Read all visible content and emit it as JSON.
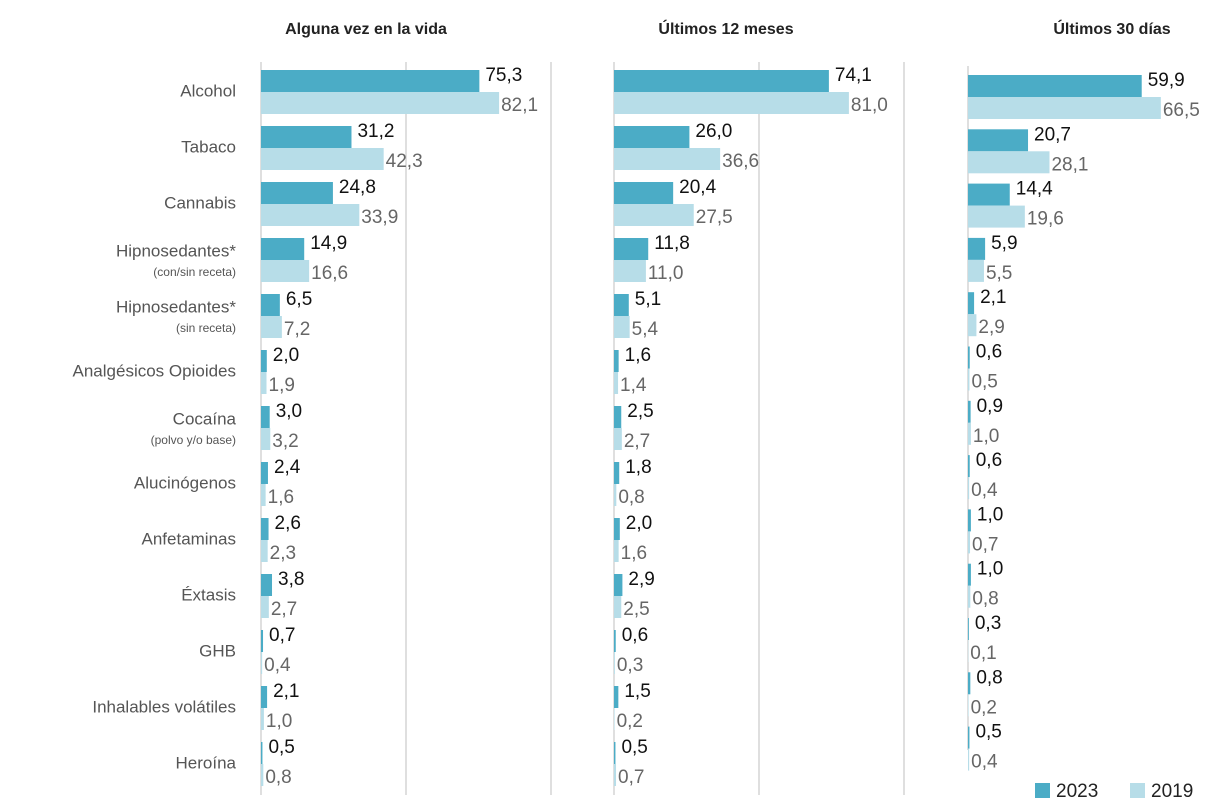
{
  "chart_data": [
    {
      "type": "bar",
      "orientation": "horizontal",
      "title": "Alguna vez en la vida",
      "categories": [
        "Alcohol",
        "Tabaco",
        "Cannabis",
        "Hipnosedantes*",
        "Hipnosedantes*",
        "Analgésicos Opioides",
        "Cocaína",
        "Alucinógenos",
        "Anfetaminas",
        "Éxtasis",
        "GHB",
        "Inhalables volátiles",
        "Heroína"
      ],
      "category_notes": [
        null,
        null,
        null,
        "(con/sin receta)",
        "(sin receta)",
        null,
        "(polvo y/o base)",
        null,
        null,
        null,
        null,
        null,
        null
      ],
      "series": [
        {
          "name": "2023",
          "color": "#4bacc6",
          "values": [
            75.3,
            31.2,
            24.8,
            14.9,
            6.5,
            2.0,
            3.0,
            2.4,
            2.6,
            3.8,
            0.7,
            2.1,
            0.5
          ],
          "value_labels": [
            "75,3",
            "31,2",
            "24,8",
            "14,9",
            "6,5",
            "2,0",
            "3,0",
            "2,4",
            "2,6",
            "3,8",
            "0,7",
            "2,1",
            "0,5"
          ]
        },
        {
          "name": "2019",
          "color": "#b7dde8",
          "values": [
            82.1,
            42.3,
            33.9,
            16.6,
            7.2,
            1.9,
            3.2,
            1.6,
            2.3,
            2.7,
            0.4,
            1.0,
            0.8
          ],
          "value_labels": [
            "82,1",
            "42,3",
            "33,9",
            "16,6",
            "7,2",
            "1,9",
            "3,2",
            "1,6",
            "2,3",
            "2,7",
            "0,4",
            "1,0",
            "0,8"
          ]
        }
      ],
      "xlim": [
        0,
        100
      ],
      "xticks": [
        0,
        50,
        100
      ],
      "grid": true
    },
    {
      "type": "bar",
      "orientation": "horizontal",
      "title": "Últimos 12 meses",
      "series": [
        {
          "color": "#4bacc6",
          "values": [
            74.1,
            26.0,
            20.4,
            11.8,
            5.1,
            1.6,
            2.5,
            1.8,
            2.0,
            2.9,
            0.6,
            1.5,
            0.5
          ],
          "value_labels": [
            "74,1",
            "26,0",
            "20,4",
            "11,8",
            "5,1",
            "1,6",
            "2,5",
            "1,8",
            "2,0",
            "2,9",
            "0,6",
            "1,5",
            "0,5"
          ]
        },
        {
          "color": "#b7dde8",
          "values": [
            81.0,
            36.6,
            27.5,
            11.0,
            5.4,
            1.4,
            2.7,
            0.8,
            1.6,
            2.5,
            0.3,
            0.2,
            0.7
          ],
          "value_labels": [
            "81,0",
            "36,6",
            "27,5",
            "11,0",
            "5,4",
            "1,4",
            "2,7",
            "0,8",
            "1,6",
            "2,5",
            "0,3",
            "0,2",
            "0,7"
          ]
        }
      ],
      "xlim": [
        0,
        100
      ],
      "xticks": [
        0,
        50,
        100
      ],
      "grid": true
    },
    {
      "type": "bar",
      "orientation": "horizontal",
      "title": "Últimos 30 días",
      "series": [
        {
          "color": "#4bacc6",
          "values": [
            59.9,
            20.7,
            14.4,
            5.9,
            2.1,
            0.6,
            0.9,
            0.6,
            1.0,
            1.0,
            0.3,
            0.8,
            0.5
          ],
          "value_labels": [
            "59,9",
            "20,7",
            "14,4",
            "5,9",
            "2,1",
            "0,6",
            "0,9",
            "0,6",
            "1,0",
            "1,0",
            "0,3",
            "0,8",
            "0,5"
          ]
        },
        {
          "color": "#b7dde8",
          "values": [
            66.5,
            28.1,
            19.6,
            5.5,
            2.9,
            0.5,
            1.0,
            0.4,
            0.7,
            0.8,
            0.1,
            0.2,
            0.4
          ],
          "value_labels": [
            "66,5",
            "28,1",
            "19,6",
            "5,5",
            "2,9",
            "0,5",
            "1,0",
            "0,4",
            "0,7",
            "0,8",
            "0,1",
            "0,2",
            "0,4"
          ]
        }
      ],
      "xlim": [
        0,
        100
      ],
      "grid": false
    }
  ]
}
